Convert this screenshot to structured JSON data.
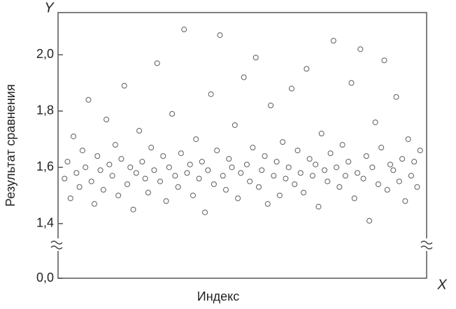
{
  "chart_data": {
    "type": "scatter",
    "y_axis_name": "Y",
    "x_axis_name": "X",
    "ylabel": "Результат сравнения",
    "xlabel": "Индекс",
    "color": "#333333",
    "ylim": [
      0,
      2.15
    ],
    "ybreak": [
      0,
      1.33
    ],
    "yticks": [
      {
        "value": 0,
        "label": "0,0"
      },
      {
        "value": 1.4,
        "label": "1,4"
      },
      {
        "value": 1.6,
        "label": "1,6"
      },
      {
        "value": 1.8,
        "label": "1,8"
      },
      {
        "value": 2.0,
        "label": "2,0"
      }
    ],
    "xlim": [
      0,
      121
    ],
    "x": [
      1,
      2,
      3,
      4,
      5,
      6,
      7,
      8,
      9,
      10,
      11,
      12,
      13,
      14,
      15,
      16,
      17,
      18,
      19,
      20,
      21,
      22,
      23,
      24,
      25,
      26,
      27,
      28,
      29,
      30,
      31,
      32,
      33,
      34,
      35,
      36,
      37,
      38,
      39,
      40,
      41,
      42,
      43,
      44,
      45,
      46,
      47,
      48,
      49,
      50,
      51,
      52,
      53,
      54,
      55,
      56,
      57,
      58,
      59,
      60,
      61,
      62,
      63,
      64,
      65,
      66,
      67,
      68,
      69,
      70,
      71,
      72,
      73,
      74,
      75,
      76,
      77,
      78,
      79,
      80,
      81,
      82,
      83,
      84,
      85,
      86,
      87,
      88,
      89,
      90,
      91,
      92,
      93,
      94,
      95,
      96,
      97,
      98,
      99,
      100,
      101,
      102,
      103,
      104,
      105,
      106,
      107,
      108,
      109,
      110,
      111,
      112,
      113,
      114,
      115,
      116,
      117,
      118,
      119,
      120
    ],
    "values": [
      1.56,
      1.62,
      1.49,
      1.71,
      1.58,
      1.53,
      1.66,
      1.6,
      1.84,
      1.55,
      1.47,
      1.64,
      1.59,
      1.52,
      1.77,
      1.61,
      1.57,
      1.68,
      1.5,
      1.63,
      1.89,
      1.54,
      1.6,
      1.45,
      1.58,
      1.73,
      1.62,
      1.56,
      1.51,
      1.67,
      1.59,
      1.97,
      1.55,
      1.64,
      1.48,
      1.6,
      1.79,
      1.57,
      1.53,
      1.65,
      2.09,
      1.58,
      1.61,
      1.5,
      1.7,
      1.56,
      1.62,
      1.44,
      1.59,
      1.86,
      1.54,
      1.66,
      2.07,
      1.57,
      1.52,
      1.63,
      1.6,
      1.75,
      1.49,
      1.58,
      1.92,
      1.61,
      1.55,
      1.67,
      1.99,
      1.53,
      1.59,
      1.64,
      1.47,
      1.82,
      1.57,
      1.62,
      1.5,
      1.69,
      1.56,
      1.6,
      1.88,
      1.54,
      1.66,
      1.58,
      1.51,
      1.95,
      1.63,
      1.57,
      1.61,
      1.46,
      1.72,
      1.59,
      1.55,
      1.65,
      2.05,
      1.6,
      1.53,
      1.68,
      1.57,
      1.62,
      1.9,
      1.49,
      1.58,
      2.02,
      1.56,
      1.64,
      1.41,
      1.6,
      1.76,
      1.54,
      1.67,
      1.98,
      1.52,
      1.61,
      1.59,
      1.85,
      1.55,
      1.63,
      1.48,
      1.7,
      1.57,
      1.62,
      1.53,
      1.66
    ]
  }
}
